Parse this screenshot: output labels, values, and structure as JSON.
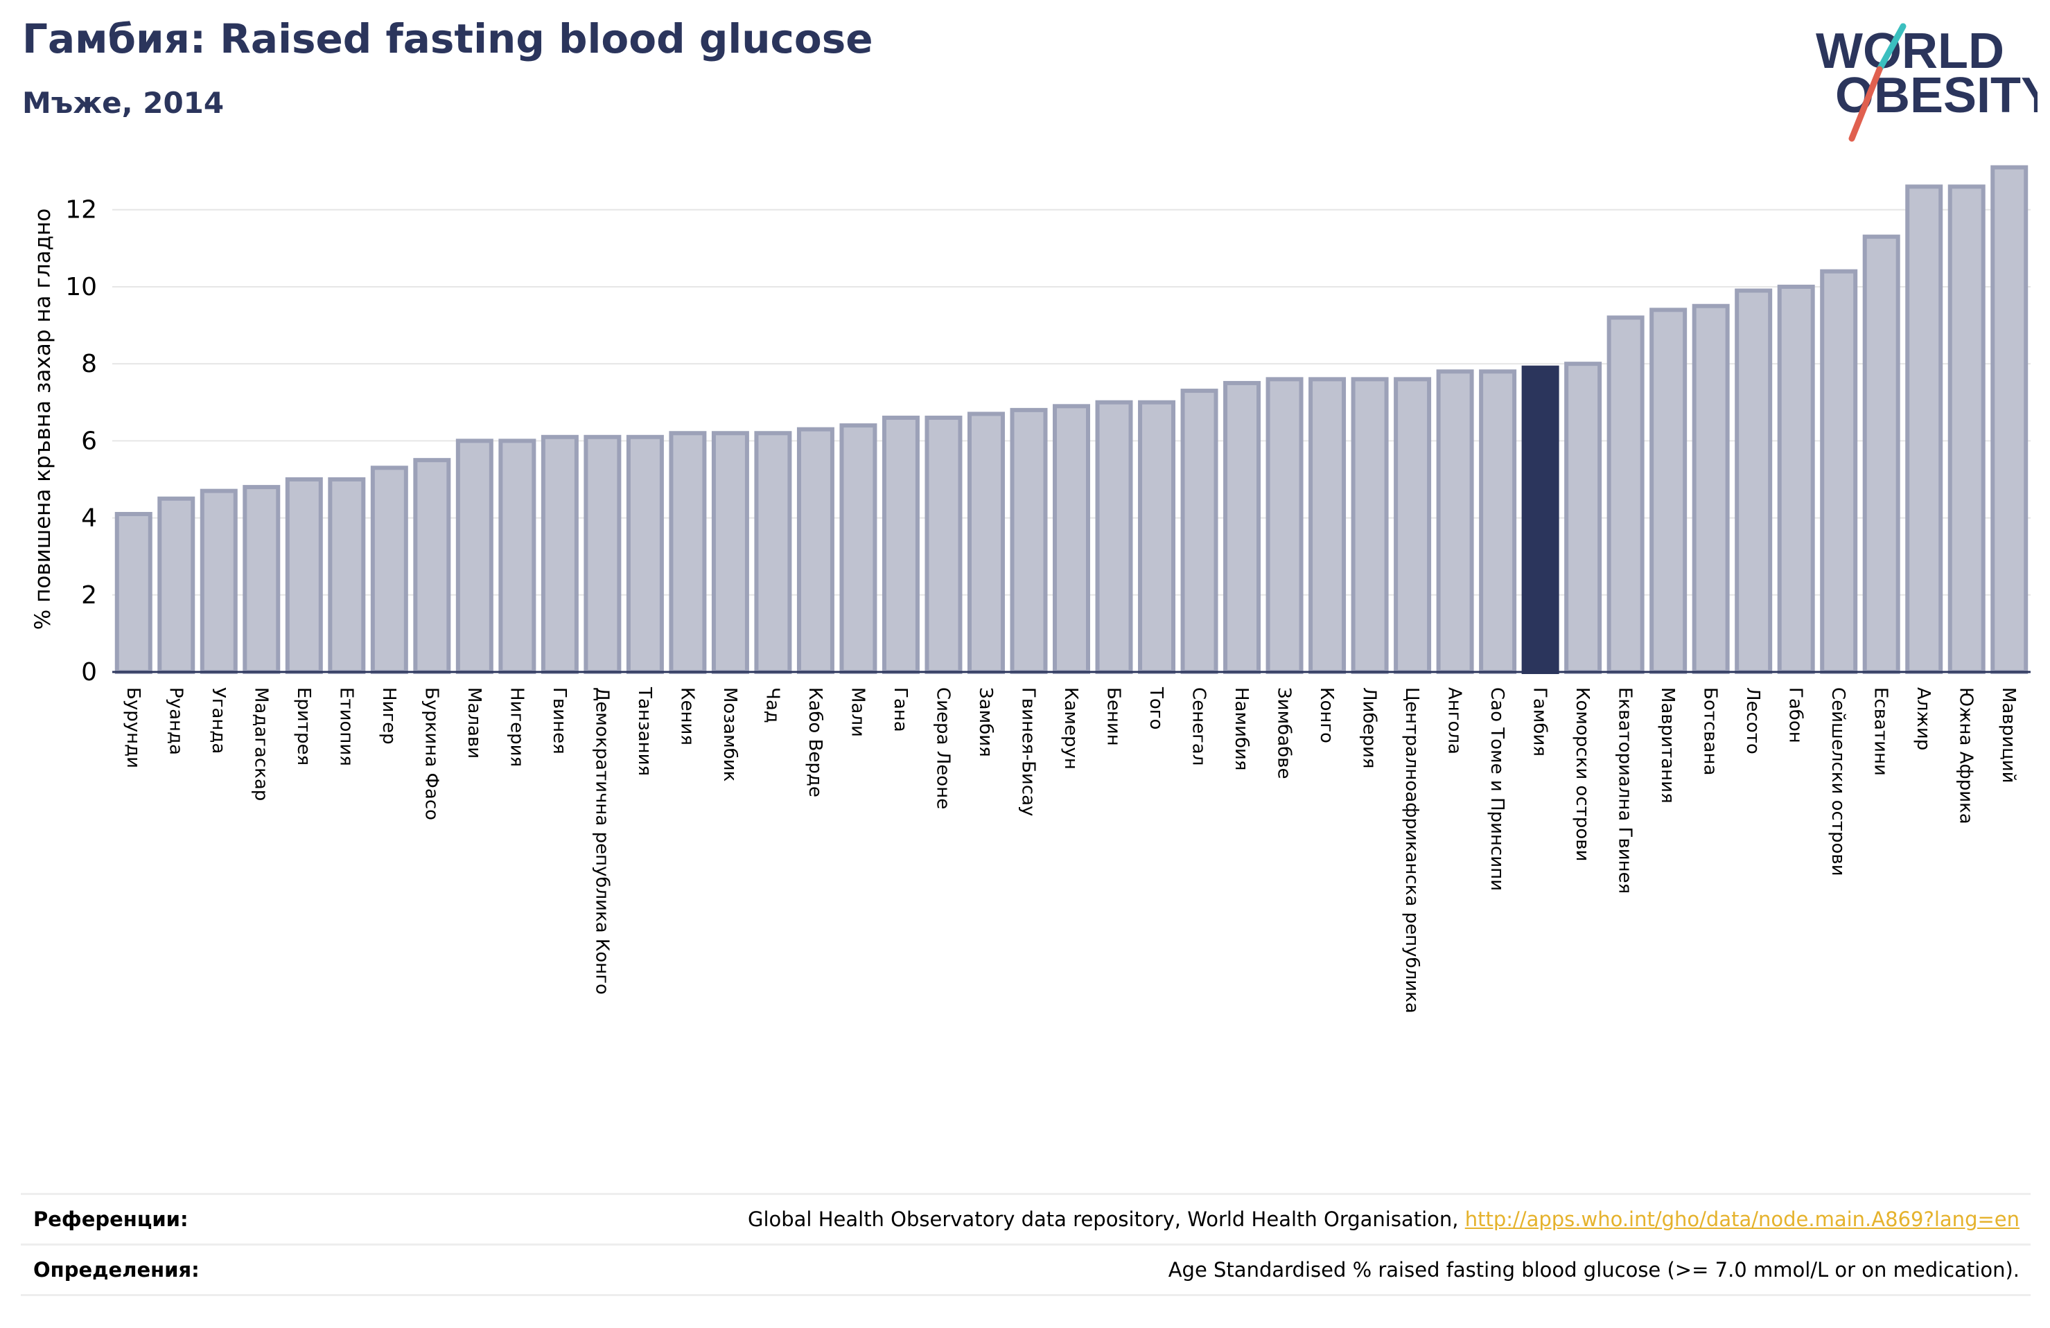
{
  "header": {
    "title": "Гамбия: Raised fasting blood glucose",
    "subtitle": "Мъже, 2014"
  },
  "logo": {
    "line1": "WORLD",
    "line2": "OBESITY",
    "text_color": "#2b355c",
    "slash_colors": [
      "#3bbfbf",
      "#e0604f"
    ]
  },
  "colors": {
    "bar": "#bfc2d0",
    "bar_stroke": "#9ca1b8",
    "highlight": "#2b355c",
    "grid": "#e6e6e6",
    "axis": "#2b355c"
  },
  "chart_data": {
    "type": "bar",
    "ylabel": "% повишена кръвна захар на гладно",
    "ylim": [
      0,
      13.2
    ],
    "yticks": [
      0,
      2,
      4,
      6,
      8,
      10,
      12
    ],
    "grid": true,
    "highlight": "Гамбия",
    "categories": [
      "Бурунди",
      "Руанда",
      "Уганда",
      "Мадагаскар",
      "Еритрея",
      "Етиопия",
      "Нигер",
      "Буркина Фасо",
      "Малави",
      "Нигерия",
      "Гвинея",
      "Демократична република Конго",
      "Танзания",
      "Кения",
      "Мозамбик",
      "Чад",
      "Кабо Верде",
      "Мали",
      "Гана",
      "Сиера Леоне",
      "Замбия",
      "Гвинея-Бисау",
      "Камерун",
      "Бенин",
      "Того",
      "Сенегал",
      "Намибия",
      "Зимбабве",
      "Конго",
      "Либерия",
      "Централноафриканска република",
      "Ангола",
      "Сао Томе и Принсипи",
      "Гамбия",
      "Коморски острови",
      "Екваториална Гвинея",
      "Мавритания",
      "Ботсвана",
      "Лесото",
      "Габон",
      "Сейшелски острови",
      "Есватини",
      "Алжир",
      "Южна Африка",
      "Мавриций"
    ],
    "values": [
      4.1,
      4.5,
      4.7,
      4.8,
      5.0,
      5.0,
      5.3,
      5.5,
      6.0,
      6.0,
      6.1,
      6.1,
      6.1,
      6.2,
      6.2,
      6.2,
      6.3,
      6.4,
      6.6,
      6.6,
      6.7,
      6.8,
      6.9,
      7.0,
      7.0,
      7.3,
      7.5,
      7.6,
      7.6,
      7.6,
      7.6,
      7.8,
      7.8,
      7.9,
      8.0,
      9.2,
      9.4,
      9.5,
      9.9,
      10.0,
      10.4,
      11.3,
      12.6,
      12.6,
      13.1
    ]
  },
  "references": {
    "label": "Референции:",
    "text": "Global Health Observatory data repository, World Health Organisation, ",
    "link": "http://apps.who.int/gho/data/node.main.A869?lang=en"
  },
  "definitions": {
    "label": "Определения:",
    "text": "Age Standardised % raised fasting blood glucose (>= 7.0 mmol/L or on medication)."
  }
}
